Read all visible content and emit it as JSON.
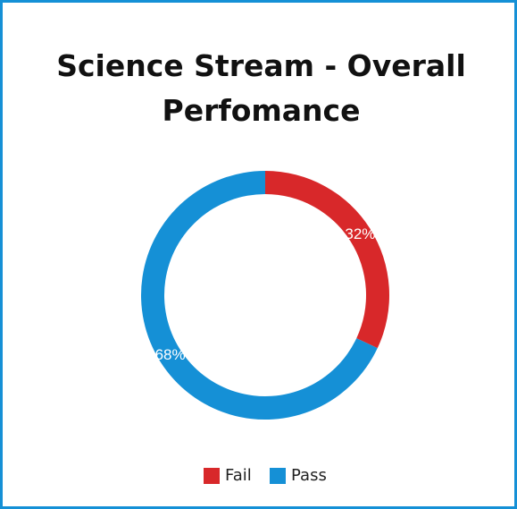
{
  "chart_data": {
    "type": "donut",
    "title": "Science Stream - Overall Perfomance",
    "categories": [
      "Fail",
      "Pass"
    ],
    "values": [
      32,
      68
    ],
    "value_labels": [
      "32%",
      "68%"
    ],
    "colors": [
      "#d8282a",
      "#1590d6"
    ],
    "legend": "bottom"
  }
}
